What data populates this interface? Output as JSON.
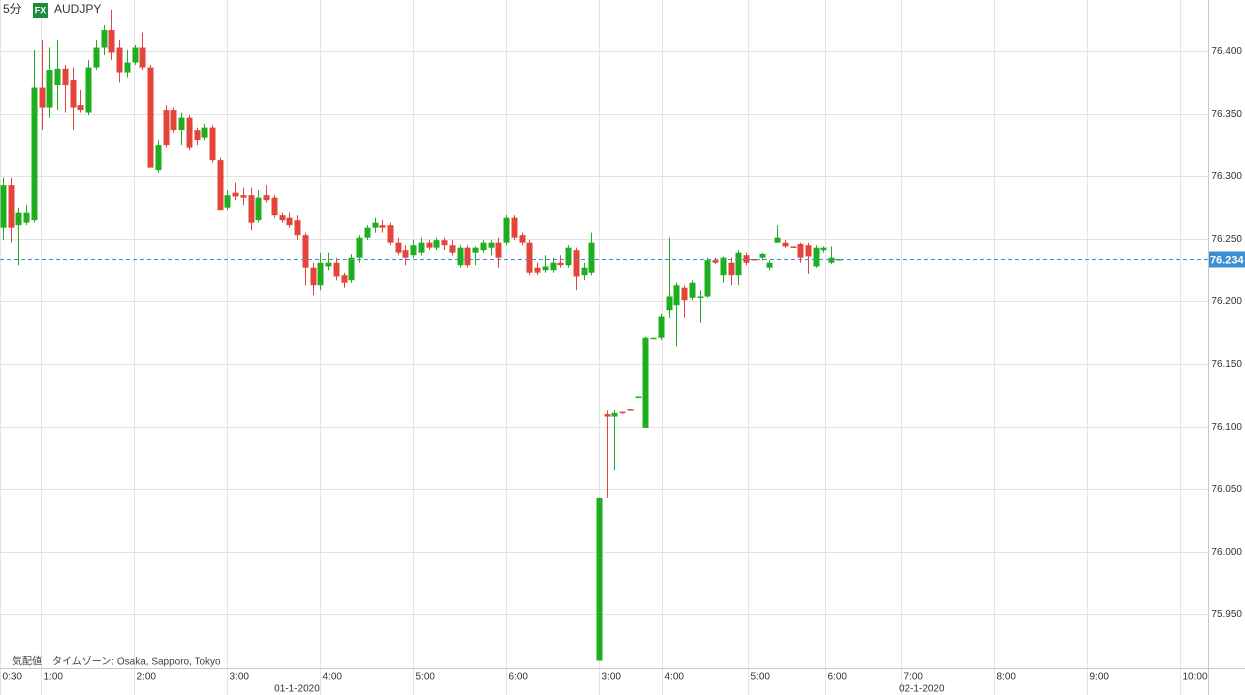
{
  "chart_data": {
    "type": "candlestick",
    "interval": "5分",
    "badge": "FX",
    "title": "AUDJPY",
    "footnote": "気配値　タイムゾーン: Osaka, Sapporo, Tokyo",
    "up_color": "#1fae1f",
    "down_color": "#e5443a",
    "grid": true,
    "open": [
      76.259,
      76.293,
      76.261,
      76.263,
      76.265,
      76.371,
      76.355,
      76.373,
      76.386,
      76.377,
      76.357,
      76.351,
      76.387,
      76.403,
      76.417,
      76.403,
      76.383,
      76.391,
      76.403,
      76.387,
      76.305,
      76.353,
      76.353,
      76.337,
      76.347,
      76.337,
      76.331,
      76.339,
      76.313,
      76.275,
      76.287,
      76.285,
      76.285,
      76.265,
      76.285,
      76.283,
      76.269,
      76.267,
      76.265,
      76.253,
      76.227,
      76.213,
      76.228,
      76.231,
      76.221,
      76.217,
      76.235,
      76.251,
      76.259,
      76.261,
      76.261,
      76.247,
      76.241,
      76.237,
      76.239,
      76.247,
      76.243,
      76.249,
      76.245,
      76.229,
      76.243,
      76.239,
      76.241,
      76.243,
      76.247,
      76.247,
      76.267,
      76.253,
      76.247,
      76.227,
      76.225,
      76.225,
      76.231,
      76.229,
      76.241,
      76.221,
      76.223,
      75.913,
      76.11,
      76.108,
      76.112,
      76.114,
      76.123,
      76.099,
      76.17,
      76.171,
      76.193,
      76.197,
      76.211,
      76.203,
      76.203,
      76.204,
      76.233,
      76.221,
      76.231,
      76.221,
      76.237,
      76.234,
      76.235,
      76.227,
      76.247,
      76.247,
      76.244,
      76.246,
      76.245,
      76.228,
      76.241,
      76.231,
      76.234
    ],
    "high": [
      76.299,
      76.299,
      76.275,
      76.277,
      76.401,
      76.409,
      76.403,
      76.409,
      76.389,
      76.387,
      76.369,
      76.393,
      76.409,
      76.421,
      76.433,
      76.409,
      76.401,
      76.405,
      76.415,
      76.389,
      76.329,
      76.357,
      76.355,
      76.351,
      76.349,
      76.339,
      76.342,
      76.341,
      76.315,
      76.289,
      76.295,
      76.291,
      76.291,
      76.289,
      76.293,
      76.285,
      76.271,
      76.271,
      76.269,
      76.255,
      76.231,
      76.239,
      76.239,
      76.235,
      76.223,
      76.238,
      76.253,
      76.261,
      76.267,
      76.265,
      76.263,
      76.251,
      76.245,
      76.249,
      76.251,
      76.249,
      76.251,
      76.251,
      76.249,
      76.245,
      76.245,
      76.244,
      76.249,
      76.249,
      76.251,
      76.269,
      76.269,
      76.255,
      76.249,
      76.231,
      76.237,
      76.235,
      76.237,
      76.245,
      76.243,
      76.231,
      76.255,
      76.043,
      76.113,
      76.113,
      76.112,
      76.114,
      76.124,
      76.172,
      76.171,
      76.19,
      76.251,
      76.215,
      76.213,
      76.217,
      76.209,
      76.235,
      76.235,
      76.236,
      76.235,
      76.241,
      76.239,
      76.234,
      76.239,
      76.233,
      76.261,
      76.249,
      76.244,
      76.247,
      76.247,
      76.245,
      76.244,
      76.244,
      76.234
    ],
    "low": [
      76.249,
      76.247,
      76.229,
      76.261,
      76.263,
      76.337,
      76.347,
      76.353,
      76.351,
      76.337,
      76.351,
      76.349,
      76.385,
      76.397,
      76.393,
      76.375,
      76.379,
      76.389,
      76.385,
      76.307,
      76.303,
      76.323,
      76.335,
      76.325,
      76.321,
      76.325,
      76.329,
      76.311,
      76.273,
      76.273,
      76.281,
      76.277,
      76.257,
      76.263,
      76.279,
      76.267,
      76.263,
      76.259,
      76.249,
      76.213,
      76.205,
      76.209,
      76.225,
      76.217,
      76.211,
      76.215,
      76.231,
      76.249,
      76.255,
      76.255,
      76.245,
      76.237,
      76.229,
      76.235,
      76.237,
      76.241,
      76.241,
      76.241,
      76.237,
      76.227,
      76.227,
      76.229,
      76.239,
      76.237,
      76.227,
      76.245,
      76.249,
      76.245,
      76.221,
      76.221,
      76.223,
      76.223,
      76.227,
      76.227,
      76.209,
      76.217,
      76.221,
      75.913,
      76.043,
      76.065,
      76.11,
      76.113,
      76.123,
      76.099,
      76.17,
      76.169,
      76.187,
      76.164,
      76.187,
      76.201,
      76.183,
      76.203,
      76.23,
      76.215,
      76.213,
      76.213,
      76.229,
      76.233,
      76.233,
      76.225,
      76.247,
      76.243,
      76.243,
      76.231,
      76.222,
      76.227,
      76.239,
      76.23,
      76.234
    ],
    "close": [
      76.293,
      76.259,
      76.271,
      76.271,
      76.371,
      76.355,
      76.385,
      76.386,
      76.373,
      76.355,
      76.353,
      76.387,
      76.403,
      76.417,
      76.399,
      76.383,
      76.391,
      76.403,
      76.387,
      76.307,
      76.325,
      76.325,
      76.337,
      76.347,
      76.323,
      76.329,
      76.339,
      76.313,
      76.273,
      76.285,
      76.284,
      76.283,
      76.263,
      76.283,
      76.281,
      76.269,
      76.265,
      76.261,
      76.253,
      76.227,
      76.213,
      76.231,
      76.231,
      76.22,
      76.215,
      76.235,
      76.251,
      76.259,
      76.263,
      76.259,
      76.247,
      76.239,
      76.235,
      76.245,
      76.247,
      76.243,
      76.249,
      76.245,
      76.239,
      76.243,
      76.229,
      76.243,
      76.247,
      76.247,
      76.235,
      76.267,
      76.251,
      76.247,
      76.223,
      76.223,
      76.228,
      76.231,
      76.229,
      76.243,
      76.22,
      76.227,
      76.247,
      76.043,
      76.108,
      76.111,
      76.111,
      76.113,
      76.124,
      76.171,
      76.171,
      76.188,
      76.204,
      76.213,
      76.201,
      76.215,
      76.204,
      76.233,
      76.231,
      76.235,
      76.221,
      76.239,
      76.231,
      76.233,
      76.238,
      76.231,
      76.251,
      76.244,
      76.243,
      76.235,
      76.236,
      76.243,
      76.243,
      76.235,
      76.234
    ],
    "last_price": 76.234,
    "last_price_color": "#3b8fd0",
    "xlim": [
      -0.388,
      155.68
    ],
    "ylim": [
      75.907,
      76.441
    ],
    "xticks": [
      {
        "value": -0.38,
        "label": "0:30"
      },
      {
        "value": 4.9,
        "label": "1:00"
      },
      {
        "value": 16.9,
        "label": "2:00"
      },
      {
        "value": 28.9,
        "label": "3:00"
      },
      {
        "value": 41.0,
        "label": "4:00"
      },
      {
        "value": 53.0,
        "label": "5:00"
      },
      {
        "value": 65.0,
        "label": "6:00"
      },
      {
        "value": 77.0,
        "label": "3:00"
      },
      {
        "value": 85.1,
        "label": "4:00"
      },
      {
        "value": 96.3,
        "label": "5:00"
      },
      {
        "value": 106.2,
        "label": "6:00"
      },
      {
        "value": 116.0,
        "label": "7:00"
      },
      {
        "value": 128.0,
        "label": "8:00"
      },
      {
        "value": 140.1,
        "label": "9:00"
      },
      {
        "value": 152.1,
        "label": "10:00"
      }
    ],
    "date_ticks": [
      {
        "value": 37.98,
        "label": "01-1-2020"
      },
      {
        "value": 118.7,
        "label": "02-1-2020"
      }
    ],
    "yticks": [
      {
        "value": 75.95,
        "label": "75.950"
      },
      {
        "value": 76.0,
        "label": "76.000"
      },
      {
        "value": 76.05,
        "label": "76.050"
      },
      {
        "value": 76.1,
        "label": "76.100"
      },
      {
        "value": 76.15,
        "label": "76.150"
      },
      {
        "value": 76.2,
        "label": "76.200"
      },
      {
        "value": 76.25,
        "label": "76.250"
      },
      {
        "value": 76.3,
        "label": "76.300"
      },
      {
        "value": 76.35,
        "label": "76.350"
      },
      {
        "value": 76.4,
        "label": "76.400"
      }
    ]
  }
}
